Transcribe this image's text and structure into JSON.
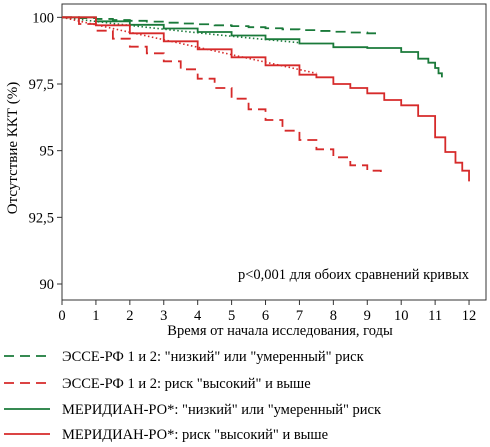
{
  "chart_data": {
    "type": "line",
    "ylabel": "Отсутствие ККТ (%)",
    "xlabel": "Время от начала исследования, годы",
    "annotation": "p<0,001 для обоих сравнений кривых",
    "xlim": [
      0,
      12.5
    ],
    "ylim": [
      89.4,
      100.5
    ],
    "x_ticks": [
      0,
      1,
      2,
      3,
      4,
      5,
      6,
      7,
      8,
      9,
      10,
      11,
      12
    ],
    "x_tick_labels": [
      "0",
      "1",
      "2",
      "3",
      "4",
      "5",
      "6",
      "7",
      "8",
      "9",
      "10",
      "11",
      "12"
    ],
    "y_ticks": [
      90,
      92.5,
      95,
      97.5,
      100
    ],
    "y_tick_labels": [
      "90",
      "92,5",
      "95",
      "97,5",
      "100"
    ],
    "grid": false,
    "legend_position": "bottom",
    "series": [
      {
        "name": "ЭССЕ-РФ 1 и 2: \"низкий\" или \"умеренный\" риск",
        "color": "#1a7a3a",
        "dash": "long-dash",
        "x": [
          0,
          0.5,
          1,
          1.5,
          2,
          2.5,
          3,
          3.5,
          4,
          4.5,
          5,
          5.5,
          6,
          6.5,
          7,
          7.5,
          8,
          8.5,
          9,
          9.4
        ],
        "y": [
          100,
          99.97,
          99.94,
          99.9,
          99.87,
          99.84,
          99.8,
          99.77,
          99.74,
          99.7,
          99.67,
          99.63,
          99.59,
          99.55,
          99.52,
          99.49,
          99.46,
          99.43,
          99.4,
          99.4
        ]
      },
      {
        "name": "ЭССЕ-РФ 1 и 2: риск \"высокий\" и выше",
        "color": "#d62a2a",
        "dash": "long-dash",
        "x": [
          0,
          0.5,
          1,
          1.5,
          2,
          2.5,
          3,
          3.5,
          4,
          4.5,
          5,
          5.5,
          6,
          6.5,
          7,
          7.5,
          8,
          8.5,
          9,
          9.4
        ],
        "y": [
          100,
          99.75,
          99.5,
          99.2,
          98.9,
          98.65,
          98.35,
          98.05,
          97.7,
          97.35,
          96.95,
          96.55,
          96.15,
          95.75,
          95.4,
          95.05,
          94.75,
          94.45,
          94.25,
          94.2
        ]
      },
      {
        "name": "МЕРИДИАН-РО*: \"низкий\" или \"умеренный\" риск",
        "color": "#1a7a3a",
        "dash": "solid",
        "x": [
          0,
          1,
          2,
          3,
          4,
          5,
          6,
          7,
          8,
          9,
          10,
          10.5,
          10.8,
          11,
          11.1,
          11.2
        ],
        "y": [
          100,
          99.85,
          99.72,
          99.58,
          99.45,
          99.32,
          99.18,
          99.02,
          98.88,
          98.85,
          98.7,
          98.45,
          98.3,
          98.1,
          97.9,
          97.75
        ]
      },
      {
        "name": "МЕРИДИАН-РО*: риск \"высокий\" и выше",
        "color": "#d62a2a",
        "dash": "solid",
        "x": [
          0,
          1,
          2,
          3,
          4,
          5,
          6,
          7,
          7.5,
          8,
          8.5,
          9,
          9.5,
          10,
          10.5,
          11,
          11.3,
          11.6,
          11.8,
          12
        ],
        "y": [
          100,
          99.7,
          99.4,
          99.1,
          98.8,
          98.5,
          98.2,
          97.85,
          97.75,
          97.5,
          97.35,
          97.15,
          96.9,
          96.7,
          96.3,
          95.5,
          94.95,
          94.55,
          94.25,
          93.85
        ]
      }
    ]
  }
}
